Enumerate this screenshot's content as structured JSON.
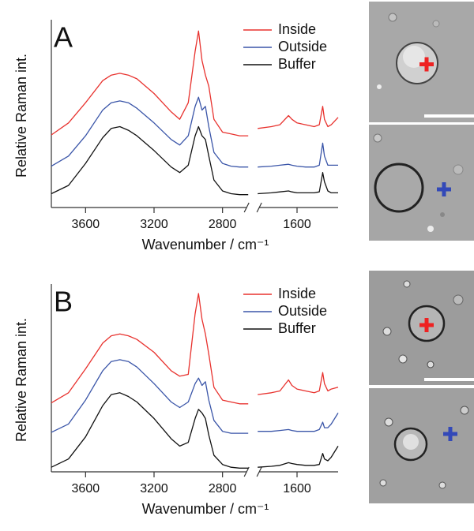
{
  "chart_data": [
    {
      "type": "line",
      "title": "A",
      "xlabel": "Wavenumber / cm⁻¹",
      "ylabel": "Relative Raman int.",
      "x": [
        3800,
        3700,
        3600,
        3500,
        3450,
        3400,
        3350,
        3300,
        3200,
        3100,
        3050,
        3000,
        2960,
        2940,
        2920,
        2900,
        2880,
        2850,
        2800,
        2750,
        2700,
        2650,
        1830,
        1750,
        1700,
        1650,
        1630,
        1600,
        1550,
        1500,
        1470,
        1450,
        1440,
        1420,
        1400,
        1360
      ],
      "xlim": [
        3800,
        1360
      ],
      "xbreak": [
        2650,
        1830
      ],
      "xticks": [
        3600,
        3200,
        2800,
        1600
      ],
      "ylim": [
        0,
        10
      ],
      "legend": "upper right",
      "series": [
        {
          "name": "Inside",
          "color": "#e8322e",
          "values": [
            3.95,
            4.6,
            5.7,
            6.9,
            7.2,
            7.3,
            7.2,
            7.0,
            6.2,
            5.2,
            4.8,
            5.7,
            8.5,
            9.6,
            8.0,
            7.2,
            6.6,
            4.8,
            4.1,
            4.0,
            3.9,
            3.9,
            4.3,
            4.4,
            4.5,
            5.0,
            4.8,
            4.6,
            4.5,
            4.4,
            4.5,
            5.5,
            4.8,
            4.4,
            4.5,
            4.9
          ]
        },
        {
          "name": "Outside",
          "color": "#3a55a8",
          "values": [
            2.25,
            2.8,
            3.9,
            5.3,
            5.7,
            5.8,
            5.7,
            5.4,
            4.6,
            3.7,
            3.4,
            3.9,
            5.5,
            6.0,
            5.3,
            5.5,
            4.4,
            3.0,
            2.4,
            2.25,
            2.2,
            2.2,
            2.2,
            2.25,
            2.3,
            2.35,
            2.3,
            2.25,
            2.2,
            2.2,
            2.3,
            3.5,
            2.8,
            2.3,
            2.3,
            2.3
          ]
        },
        {
          "name": "Buffer",
          "color": "#111111",
          "values": [
            0.75,
            1.2,
            2.4,
            3.8,
            4.3,
            4.4,
            4.2,
            3.9,
            3.1,
            2.2,
            1.9,
            2.3,
            3.9,
            4.4,
            3.9,
            3.7,
            2.8,
            1.5,
            0.9,
            0.75,
            0.7,
            0.7,
            0.75,
            0.8,
            0.85,
            0.9,
            0.85,
            0.8,
            0.8,
            0.8,
            0.85,
            1.9,
            1.4,
            0.9,
            0.8,
            0.8
          ]
        }
      ]
    },
    {
      "type": "line",
      "title": "B",
      "xlabel": "Wavenumber / cm⁻¹",
      "ylabel": "Relative Raman int.",
      "x": [
        3800,
        3700,
        3600,
        3500,
        3450,
        3400,
        3350,
        3300,
        3200,
        3100,
        3050,
        3000,
        2960,
        2940,
        2920,
        2900,
        2880,
        2850,
        2800,
        2750,
        2700,
        2650,
        1830,
        1750,
        1700,
        1650,
        1630,
        1600,
        1550,
        1500,
        1470,
        1450,
        1440,
        1420,
        1400,
        1360
      ],
      "xlim": [
        3800,
        1360
      ],
      "xbreak": [
        2650,
        1830
      ],
      "xticks": [
        3600,
        3200,
        2800,
        1600
      ],
      "ylim": [
        0,
        10
      ],
      "legend": "upper right",
      "series": [
        {
          "name": "Inside",
          "color": "#e8322e",
          "values": [
            3.75,
            4.3,
            5.6,
            7.0,
            7.4,
            7.5,
            7.4,
            7.2,
            6.5,
            5.5,
            5.2,
            5.3,
            8.6,
            9.7,
            8.3,
            7.5,
            6.4,
            4.6,
            3.9,
            3.8,
            3.7,
            3.7,
            4.2,
            4.3,
            4.4,
            5.0,
            4.7,
            4.5,
            4.4,
            4.3,
            4.4,
            5.4,
            4.8,
            4.4,
            4.5,
            4.6
          ]
        },
        {
          "name": "Outside",
          "color": "#3a55a8",
          "values": [
            2.15,
            2.6,
            3.9,
            5.5,
            6.0,
            6.1,
            6.0,
            5.7,
            4.8,
            3.8,
            3.5,
            3.8,
            4.8,
            5.1,
            4.7,
            4.9,
            3.9,
            2.8,
            2.2,
            2.1,
            2.1,
            2.1,
            2.2,
            2.2,
            2.25,
            2.3,
            2.25,
            2.2,
            2.2,
            2.2,
            2.3,
            2.7,
            2.4,
            2.4,
            2.6,
            3.2
          ]
        },
        {
          "name": "Buffer",
          "color": "#111111",
          "values": [
            0.25,
            0.7,
            1.9,
            3.6,
            4.2,
            4.3,
            4.1,
            3.8,
            2.9,
            1.8,
            1.4,
            1.6,
            2.9,
            3.4,
            3.2,
            2.9,
            2.0,
            0.9,
            0.4,
            0.25,
            0.2,
            0.2,
            0.25,
            0.3,
            0.35,
            0.5,
            0.45,
            0.4,
            0.35,
            0.35,
            0.4,
            1.0,
            0.7,
            0.6,
            0.8,
            1.4
          ]
        }
      ]
    }
  ]
}
